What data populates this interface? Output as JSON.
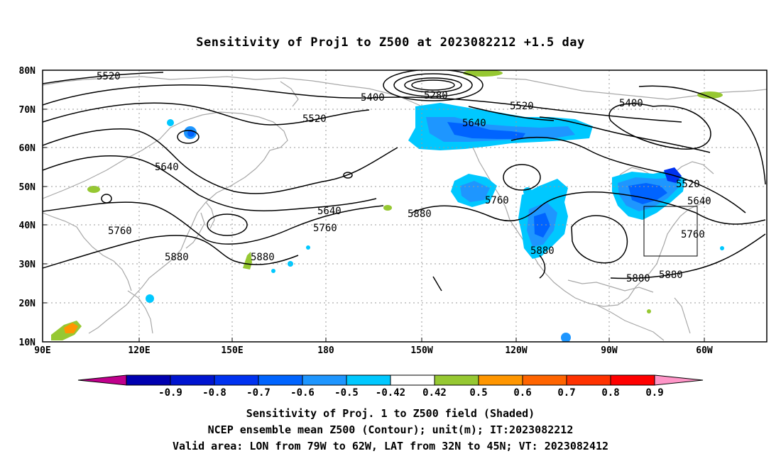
{
  "title": "Sensitivity of Proj1 to Z500 at 2023082212 +1.5 day",
  "lat_labels": [
    "80N",
    "70N",
    "60N",
    "50N",
    "40N",
    "30N",
    "20N",
    "10N"
  ],
  "lon_labels": [
    "90E",
    "120E",
    "150E",
    "180",
    "150W",
    "120W",
    "90W",
    "60W"
  ],
  "contour_labels": [
    "5520",
    "5400",
    "5280",
    "5520",
    "5400",
    "5520",
    "5640",
    "5640",
    "5640",
    "5520",
    "5640",
    "5880",
    "5760",
    "5760",
    "5760",
    "5880",
    "5880",
    "5880",
    "5880",
    "5880",
    "5760"
  ],
  "colorbar": {
    "values": [
      "-0.9",
      "-0.8",
      "-0.7",
      "-0.6",
      "-0.5",
      "-0.42",
      "0.42",
      "0.5",
      "0.6",
      "0.7",
      "0.8",
      "0.9"
    ],
    "colors": [
      "#c0008c",
      "#0000b0",
      "#0014d0",
      "#0032f0",
      "#0064ff",
      "#1e96ff",
      "#00c8ff",
      "#ffffff",
      "#96c832",
      "#ff9600",
      "#ff6400",
      "#ff3200",
      "#ff0000",
      "#ff96c8"
    ]
  },
  "captions": [
    "Sensitivity of Proj. 1 to Z500 field (Shaded)",
    "NCEP ensemble mean Z500 (Contour); unit(m); IT:2023082212",
    "Valid area: LON from 79W to 62W, LAT from 32N to 45N; VT: 2023082412"
  ]
}
